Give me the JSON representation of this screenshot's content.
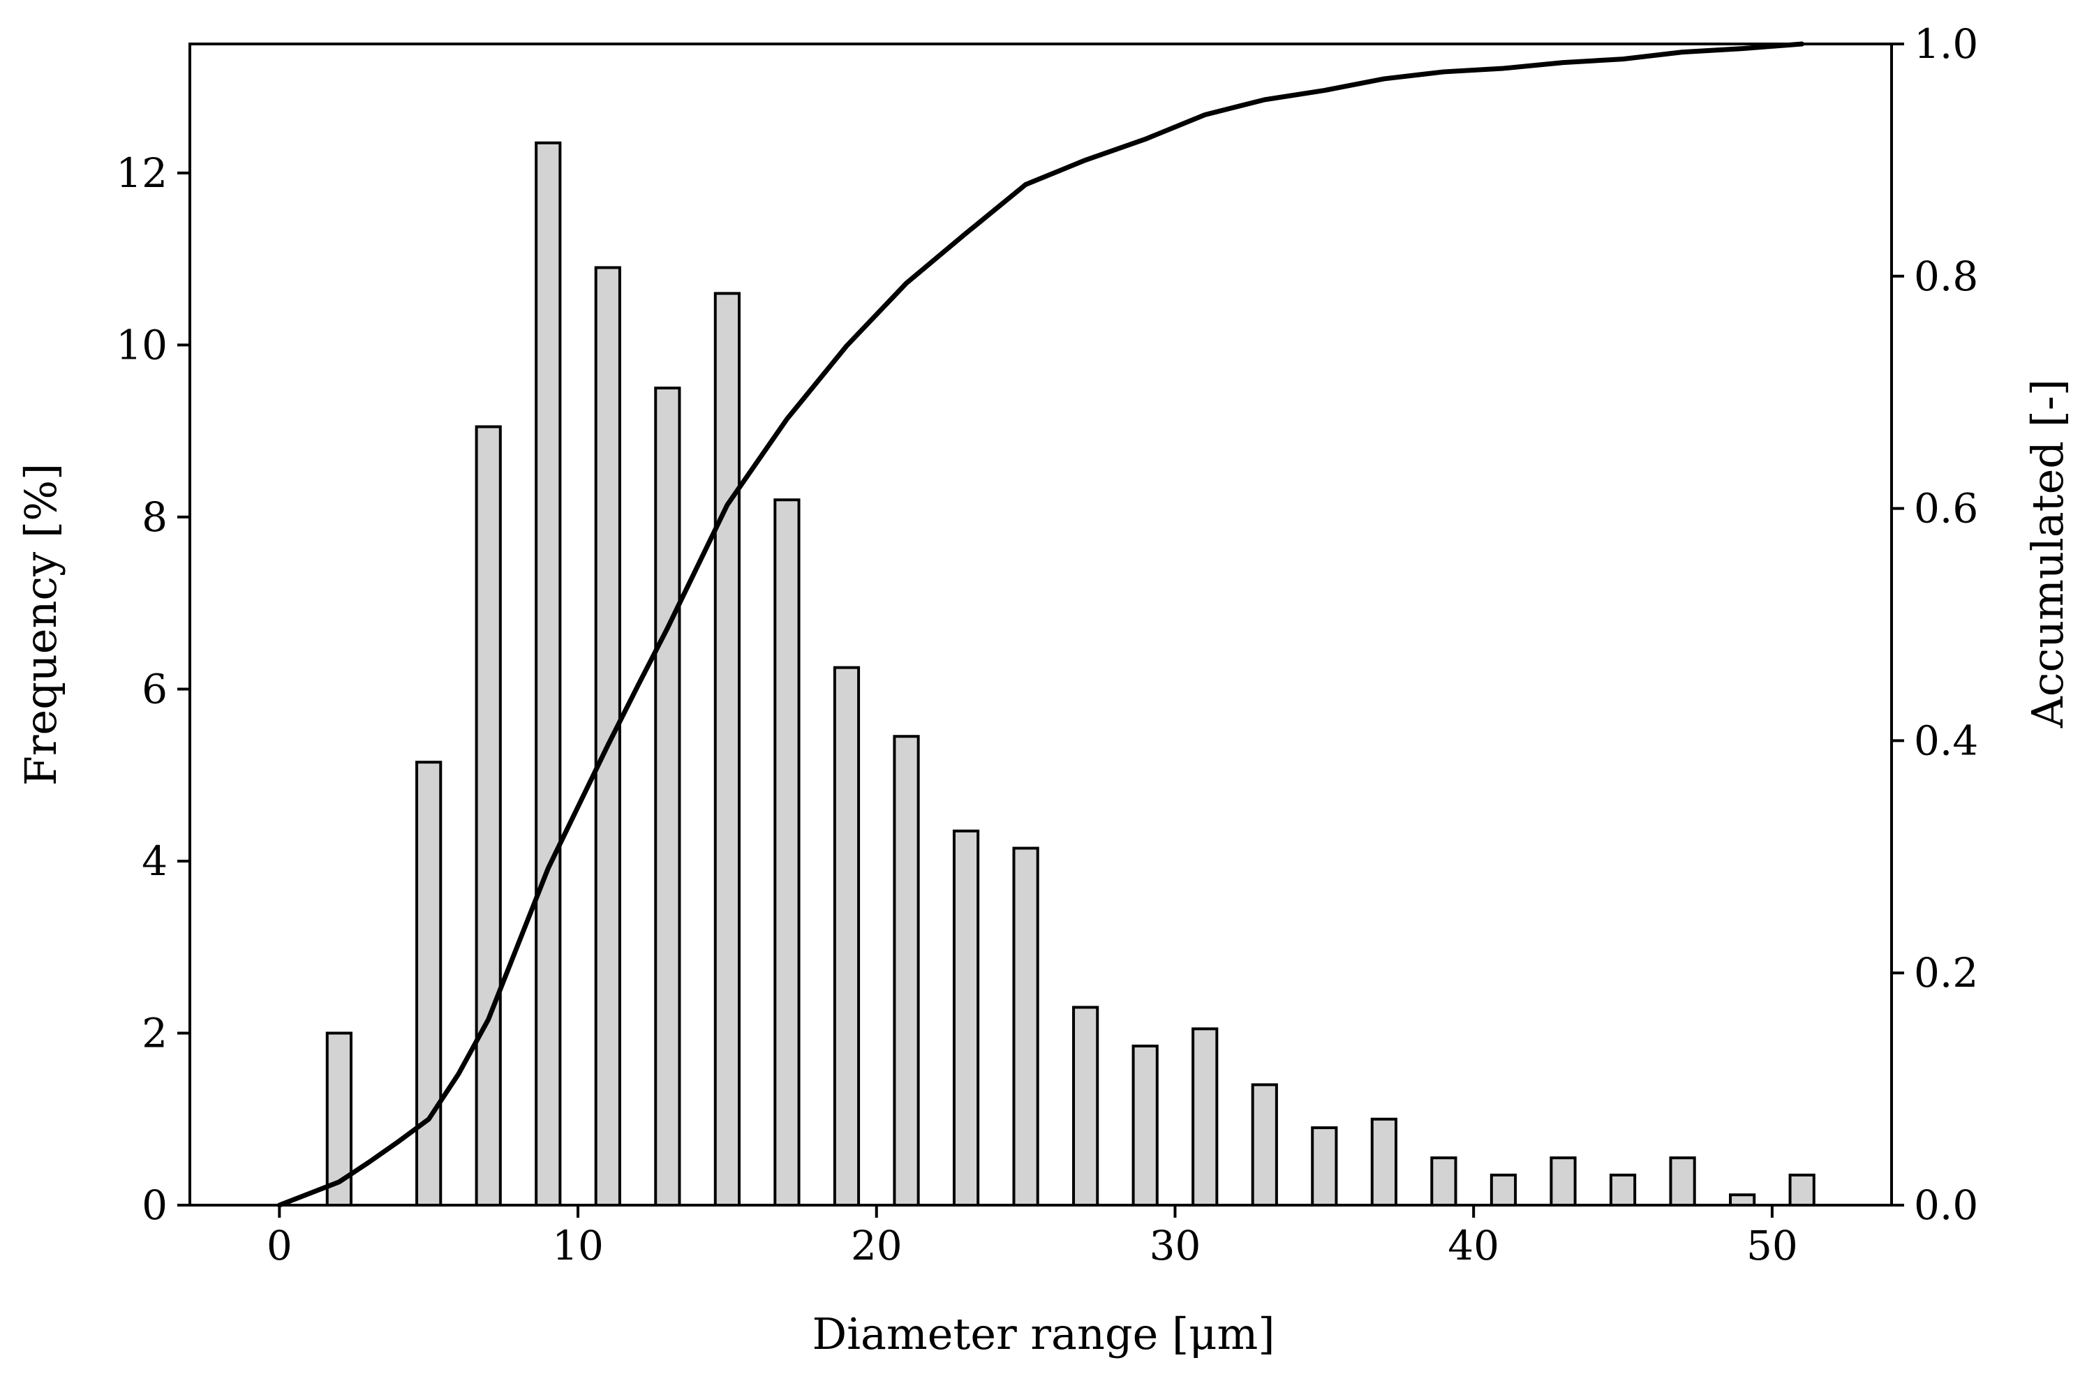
{
  "chart_data": {
    "type": "bar",
    "title": "",
    "xlabel": "Diameter range [μm]",
    "ylabel": "Frequency [%]",
    "y2label": "Accumulated [-]",
    "xlim": [
      -3,
      54
    ],
    "ylim": [
      0,
      13.5
    ],
    "y2lim": [
      0,
      1.0
    ],
    "xticks": [
      0,
      10,
      20,
      30,
      40,
      50
    ],
    "yticks": [
      0,
      2,
      4,
      6,
      8,
      10,
      12
    ],
    "y2ticks": [
      "0.0",
      "0.2",
      "0.4",
      "0.6",
      "0.8",
      "1.0"
    ],
    "grid": false,
    "bar_color": "#d3d3d3",
    "edge_color": "#000000",
    "line_color": "#000000",
    "series": [
      {
        "name": "Frequency",
        "type": "bar",
        "x": [
          2,
          5,
          7,
          9,
          11,
          13,
          15,
          17,
          19,
          21,
          23,
          25,
          27,
          29,
          31,
          33,
          35,
          37,
          39,
          41,
          43,
          45,
          47,
          49,
          51
        ],
        "values": [
          2.0,
          5.15,
          9.05,
          12.35,
          10.9,
          9.5,
          10.6,
          8.2,
          6.25,
          5.45,
          4.35,
          4.15,
          2.3,
          1.85,
          2.05,
          1.4,
          0.9,
          1.0,
          0.55,
          0.35,
          0.55,
          0.35,
          0.55,
          0.12,
          0.35
        ]
      },
      {
        "name": "Accumulated",
        "type": "line",
        "axis": "right",
        "x": [
          0,
          1,
          2,
          3,
          4,
          5,
          6,
          7,
          8,
          9,
          10,
          11,
          12,
          13,
          14,
          15,
          17,
          19,
          21,
          23,
          25,
          27,
          29,
          31,
          33,
          35,
          37,
          39,
          41,
          43,
          45,
          47,
          49,
          51
        ],
        "values": [
          0.0,
          0.01,
          0.02,
          0.037,
          0.055,
          0.074,
          0.113,
          0.16,
          0.225,
          0.29,
          0.343,
          0.396,
          0.447,
          0.497,
          0.55,
          0.603,
          0.677,
          0.74,
          0.794,
          0.837,
          0.879,
          0.9,
          0.918,
          0.939,
          0.952,
          0.96,
          0.97,
          0.976,
          0.979,
          0.984,
          0.987,
          0.993,
          0.996,
          1.0
        ]
      }
    ]
  }
}
